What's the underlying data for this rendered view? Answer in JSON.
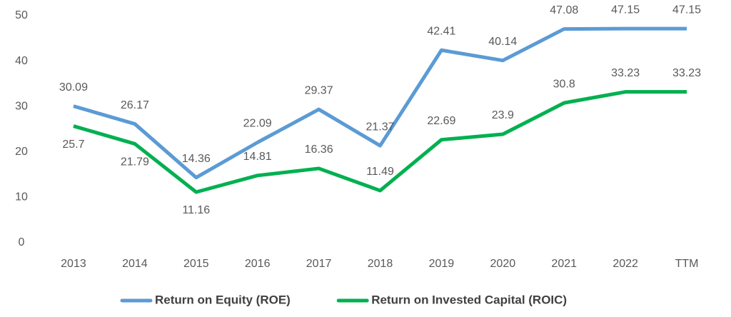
{
  "chart_data": {
    "type": "line",
    "categories": [
      "2013",
      "2014",
      "2015",
      "2016",
      "2017",
      "2018",
      "2019",
      "2020",
      "2021",
      "2022",
      "TTM"
    ],
    "series": [
      {
        "name": "Return on Equity (ROE)",
        "color": "#5b9bd5",
        "values": [
          30.09,
          26.17,
          14.36,
          22.09,
          29.37,
          21.37,
          42.41,
          40.14,
          47.08,
          47.15,
          47.15
        ]
      },
      {
        "name": "Return on Invested Capital (ROIC)",
        "color": "#00b050",
        "values": [
          25.7,
          21.79,
          11.16,
          14.81,
          16.36,
          11.49,
          22.69,
          23.9,
          30.8,
          33.23,
          33.23
        ]
      }
    ],
    "ylim": [
      0,
      50
    ],
    "yticks": [
      0,
      10,
      20,
      30,
      40,
      50
    ],
    "grid": false,
    "legend": "bottom"
  }
}
